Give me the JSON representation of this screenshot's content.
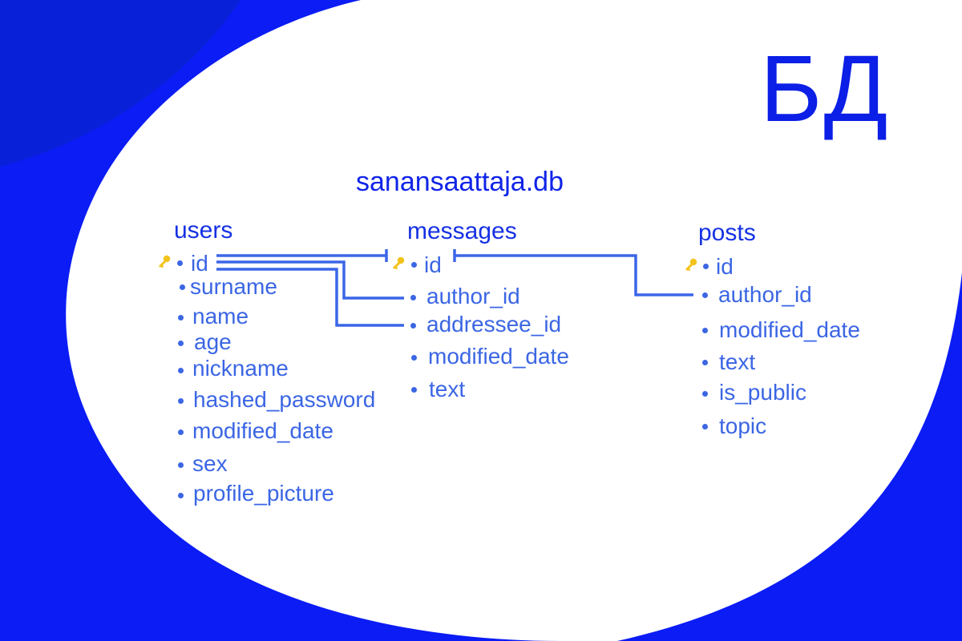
{
  "title": "БД",
  "database": "sanansaattaja.db",
  "colors": {
    "background_blue": "#0b1cf5",
    "corner_blue": "#0820d8",
    "title_blue": "#0b1fe6",
    "table_blue": "#1531e3",
    "field_blue": "#3b66e4",
    "line_blue": "#3a66e8",
    "key_yellow": "#f2c31a"
  },
  "tables": {
    "users": {
      "name": "users",
      "fields": [
        "id",
        "surname",
        "name",
        "age",
        "nickname",
        "hashed_password",
        "modified_date",
        "sex",
        "profile_picture"
      ],
      "primary_key": "id"
    },
    "messages": {
      "name": "messages",
      "fields": [
        "id",
        "author_id",
        "addressee_id",
        "modified_date",
        "text"
      ],
      "primary_key": "id"
    },
    "posts": {
      "name": "posts",
      "fields": [
        "id",
        "author_id",
        "modified_date",
        "text",
        "is_public",
        "topic"
      ],
      "primary_key": "id"
    }
  },
  "relations": [
    {
      "from": "users.id",
      "to": "messages.id"
    },
    {
      "from": "users.id",
      "to": "messages.author_id"
    },
    {
      "from": "users.id",
      "to": "messages.addressee_id"
    },
    {
      "from": "messages.id",
      "to": "posts.author_id"
    }
  ]
}
